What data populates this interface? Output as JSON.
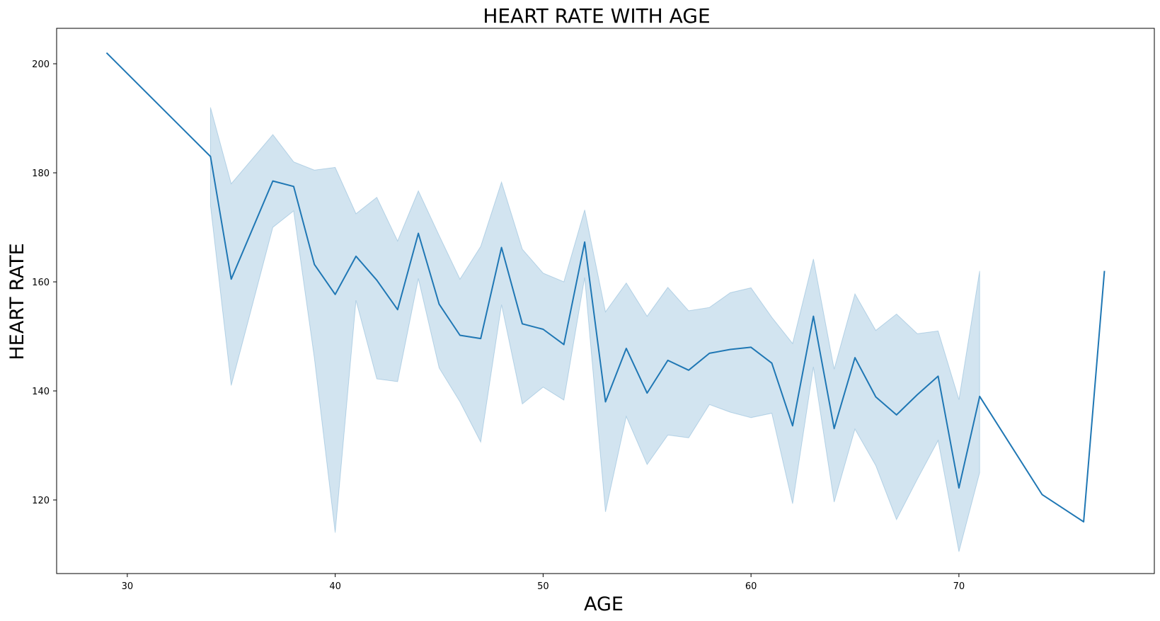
{
  "chart_data": {
    "type": "line",
    "title": "HEART RATE  WITH AGE",
    "xlabel": "AGE",
    "ylabel": "HEART RATE",
    "xlim": [
      26.6,
      79.4
    ],
    "ylim": [
      106.5,
      206.5
    ],
    "x_ticks": [
      30,
      40,
      50,
      60,
      70
    ],
    "y_ticks": [
      120,
      140,
      160,
      180,
      200
    ],
    "grid": false,
    "legend": "none",
    "colors": {
      "line": "#1f77b4",
      "band": "#1f77b4"
    },
    "series": [
      {
        "x": [
          29,
          34,
          35,
          37,
          38,
          39,
          40,
          41,
          42,
          43,
          44,
          45,
          46,
          47,
          48,
          49,
          50,
          51,
          52,
          53,
          54,
          55,
          56,
          57,
          58,
          59,
          60,
          61,
          62,
          63,
          64,
          65,
          66,
          67,
          68,
          69,
          70,
          71,
          74,
          76,
          77
        ],
        "y": [
          202,
          183,
          160.5,
          178.5,
          177.5,
          163.2,
          157.7,
          164.7,
          160.3,
          154.9,
          168.9,
          155.9,
          150.2,
          149.6,
          166.3,
          152.3,
          151.3,
          148.5,
          167.3,
          138,
          147.8,
          139.6,
          145.6,
          143.8,
          146.9,
          147.6,
          148,
          145.1,
          133.6,
          153.7,
          133.1,
          146.1,
          138.9,
          135.6,
          139.3,
          142.7,
          122.2,
          139,
          121,
          116,
          162
        ],
        "ci_x": [
          34,
          35,
          37,
          38,
          39,
          40,
          41,
          42,
          43,
          44,
          45,
          46,
          47,
          48,
          49,
          50,
          51,
          52,
          53,
          54,
          55,
          56,
          57,
          58,
          59,
          60,
          61,
          62,
          63,
          64,
          65,
          66,
          67,
          68,
          69,
          70,
          71
        ],
        "ci_upper": [
          192,
          178,
          187,
          182,
          180.5,
          181,
          172.5,
          175.5,
          167.5,
          176.7,
          168.5,
          160.5,
          166.5,
          178.3,
          166,
          161.6,
          160,
          173.2,
          154.5,
          159.8,
          153.7,
          159,
          154.7,
          155.3,
          158,
          158.9,
          153.5,
          148.7,
          164.2,
          144,
          157.8,
          151.1,
          154.1,
          150.5,
          151,
          138.4,
          162
        ],
        "ci_lower": [
          174,
          141,
          170,
          173,
          146,
          114,
          156.6,
          142.2,
          141.7,
          160.6,
          144.2,
          138,
          130.6,
          155.8,
          137.6,
          140.7,
          138.3,
          160.8,
          117.8,
          135.3,
          126.5,
          131.9,
          131.4,
          137.5,
          136.1,
          135.1,
          135.9,
          119.3,
          144.4,
          119.6,
          133,
          126.3,
          116.4,
          123.8,
          130.9,
          110.5,
          125
        ]
      }
    ]
  }
}
